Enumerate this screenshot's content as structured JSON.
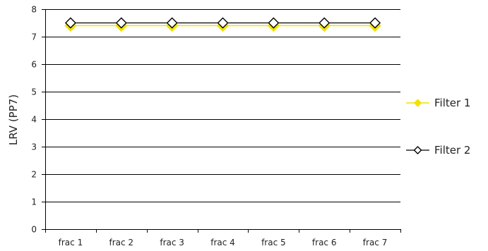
{
  "chart_data": {
    "type": "line",
    "ylabel": "LRV (PP7)",
    "categories": [
      "frac 1",
      "frac 2",
      "frac 3",
      "frac 4",
      "frac 5",
      "frac 6",
      "frac 7"
    ],
    "ylim": [
      0,
      8
    ],
    "yticks": [
      0,
      1,
      2,
      3,
      4,
      5,
      6,
      7,
      8
    ],
    "grid": true,
    "legend_position": "right",
    "series": [
      {
        "name": "Filter 1",
        "values": [
          7.4,
          7.4,
          7.4,
          7.4,
          7.4,
          7.4,
          7.4
        ],
        "color": "#f2e200",
        "marker": "filled-diamond"
      },
      {
        "name": "Filter 2",
        "values": [
          7.5,
          7.5,
          7.5,
          7.5,
          7.5,
          7.5,
          7.5
        ],
        "color": "#000000",
        "marker": "open-diamond"
      }
    ]
  }
}
